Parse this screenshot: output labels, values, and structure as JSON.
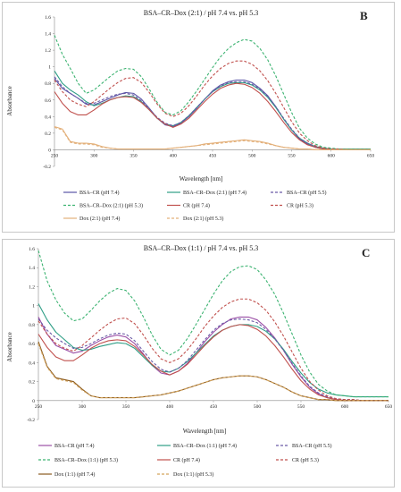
{
  "chart_data": [
    {
      "type": "line",
      "panel_letter": "B",
      "title": "BSA–CR–Dox (2:1) / pH 7.4 vs. pH 5.3",
      "xlabel": "Wavelength [nm]",
      "ylabel": "Absorbance",
      "xlim": [
        250,
        650
      ],
      "ylim": [
        -0.2,
        1.6
      ],
      "x_ticks": [
        250,
        300,
        350,
        400,
        450,
        500,
        550,
        600,
        650
      ],
      "y_ticks": [
        -0.2,
        0,
        0.2,
        0.4,
        0.6,
        0.8,
        1,
        1.2,
        1.4,
        1.6
      ],
      "y_tick_labels": [
        "-0.2",
        "0",
        "0.2",
        "0.4",
        "0.6",
        "0.8",
        "1",
        "1.2",
        "1.4",
        "1.6"
      ],
      "grid": false,
      "legend_position": "bottom",
      "x": [
        250,
        260,
        270,
        280,
        290,
        300,
        310,
        320,
        330,
        340,
        350,
        360,
        370,
        380,
        390,
        400,
        410,
        420,
        430,
        440,
        450,
        460,
        470,
        480,
        490,
        500,
        510,
        520,
        530,
        540,
        550,
        560,
        570,
        580,
        590,
        600,
        610,
        620,
        630,
        640,
        650
      ],
      "series": [
        {
          "name": "BSA–CR (pH 7.4)",
          "color": "#5a55a6",
          "dash": "solid",
          "values": [
            0.86,
            0.74,
            0.68,
            0.62,
            0.55,
            0.54,
            0.58,
            0.62,
            0.66,
            0.69,
            0.68,
            0.61,
            0.5,
            0.38,
            0.3,
            0.28,
            0.32,
            0.4,
            0.5,
            0.61,
            0.71,
            0.78,
            0.82,
            0.84,
            0.84,
            0.81,
            0.74,
            0.65,
            0.52,
            0.37,
            0.24,
            0.13,
            0.07,
            0.03,
            0.01,
            0.01,
            0.0,
            0.0,
            0.0,
            0.0,
            0.0
          ]
        },
        {
          "name": "BSA–CR–Dox (2:1) (pH 7.4)",
          "color": "#2e9e86",
          "dash": "solid",
          "values": [
            0.95,
            0.8,
            0.72,
            0.66,
            0.58,
            0.53,
            0.56,
            0.6,
            0.63,
            0.65,
            0.64,
            0.58,
            0.48,
            0.38,
            0.31,
            0.29,
            0.33,
            0.41,
            0.51,
            0.61,
            0.7,
            0.76,
            0.8,
            0.81,
            0.81,
            0.78,
            0.72,
            0.63,
            0.51,
            0.37,
            0.24,
            0.14,
            0.08,
            0.04,
            0.02,
            0.01,
            0.01,
            0.01,
            0.01,
            0.01,
            0.01
          ]
        },
        {
          "name": "BSA–CR (pH 5.5)",
          "color": "#6a5aa6",
          "dash": "dashed",
          "values": [
            0.88,
            0.76,
            0.68,
            0.62,
            0.56,
            0.56,
            0.6,
            0.64,
            0.67,
            0.68,
            0.66,
            0.59,
            0.49,
            0.39,
            0.32,
            0.29,
            0.33,
            0.41,
            0.51,
            0.61,
            0.7,
            0.77,
            0.81,
            0.82,
            0.82,
            0.79,
            0.73,
            0.64,
            0.52,
            0.38,
            0.25,
            0.14,
            0.08,
            0.04,
            0.02,
            0.01,
            0.01,
            0.0,
            0.0,
            0.0,
            0.0
          ]
        },
        {
          "name": "BSA–CR–Dox (2:1) (pH 5.3)",
          "color": "#3cb371",
          "dash": "dashed",
          "values": [
            1.38,
            1.15,
            0.98,
            0.8,
            0.68,
            0.72,
            0.8,
            0.88,
            0.95,
            0.98,
            0.97,
            0.88,
            0.73,
            0.57,
            0.45,
            0.42,
            0.47,
            0.58,
            0.71,
            0.85,
            0.99,
            1.12,
            1.22,
            1.29,
            1.33,
            1.31,
            1.22,
            1.08,
            0.89,
            0.67,
            0.45,
            0.26,
            0.14,
            0.07,
            0.03,
            0.02,
            0.01,
            0.01,
            0.01,
            0.01,
            0.01
          ]
        },
        {
          "name": "CR (pH 7.4)",
          "color": "#c0504d",
          "dash": "solid",
          "values": [
            0.7,
            0.56,
            0.46,
            0.42,
            0.42,
            0.48,
            0.55,
            0.6,
            0.63,
            0.64,
            0.63,
            0.57,
            0.48,
            0.38,
            0.31,
            0.27,
            0.31,
            0.38,
            0.48,
            0.58,
            0.67,
            0.74,
            0.78,
            0.8,
            0.79,
            0.75,
            0.68,
            0.58,
            0.46,
            0.33,
            0.21,
            0.12,
            0.06,
            0.03,
            0.01,
            0.0,
            0.0,
            0.0,
            0.0,
            0.0,
            0.0
          ]
        },
        {
          "name": "CR (pH 5.3)",
          "color": "#c0504d",
          "dash": "dashed",
          "values": [
            0.84,
            0.7,
            0.6,
            0.55,
            0.52,
            0.58,
            0.66,
            0.74,
            0.81,
            0.86,
            0.87,
            0.81,
            0.69,
            0.55,
            0.44,
            0.4,
            0.44,
            0.53,
            0.65,
            0.78,
            0.89,
            0.98,
            1.04,
            1.07,
            1.07,
            1.03,
            0.95,
            0.83,
            0.68,
            0.51,
            0.34,
            0.2,
            0.11,
            0.05,
            0.02,
            0.01,
            0.01,
            0.0,
            0.0,
            0.0,
            0.0
          ]
        },
        {
          "name": "Dox (2:1) (pH 7.4)",
          "color": "#e3b07a",
          "dash": "solid",
          "values": [
            0.28,
            0.25,
            0.1,
            0.08,
            0.08,
            0.07,
            0.04,
            0.02,
            0.01,
            0.01,
            0.01,
            0.01,
            0.01,
            0.01,
            0.01,
            0.02,
            0.03,
            0.04,
            0.05,
            0.07,
            0.08,
            0.09,
            0.1,
            0.11,
            0.12,
            0.11,
            0.1,
            0.08,
            0.05,
            0.03,
            0.02,
            0.01,
            0.01,
            0.0,
            0.0,
            0.0,
            0.0,
            0.0,
            0.0,
            0.0,
            0.0
          ]
        },
        {
          "name": "Dox (2:1) (pH 5.3)",
          "color": "#e3b07a",
          "dash": "dashed",
          "values": [
            0.27,
            0.24,
            0.09,
            0.07,
            0.07,
            0.06,
            0.03,
            0.02,
            0.01,
            0.01,
            0.01,
            0.01,
            0.01,
            0.01,
            0.01,
            0.02,
            0.03,
            0.04,
            0.05,
            0.06,
            0.07,
            0.08,
            0.09,
            0.1,
            0.11,
            0.1,
            0.09,
            0.07,
            0.05,
            0.03,
            0.02,
            0.01,
            0.01,
            0.0,
            0.0,
            0.0,
            0.0,
            0.0,
            0.0,
            0.0,
            0.0
          ]
        }
      ]
    },
    {
      "type": "line",
      "panel_letter": "C",
      "title": "BSA–CR–Dox (1:1) / pH 7.4 vs. pH 5.3",
      "xlabel": "Wavelength [nm]",
      "ylabel": "Absorbance",
      "xlim": [
        250,
        650
      ],
      "ylim": [
        -0.2,
        1.6
      ],
      "x_ticks": [
        250,
        300,
        350,
        400,
        450,
        500,
        550,
        600,
        650
      ],
      "y_ticks": [
        -0.2,
        0,
        0.2,
        0.4,
        0.6,
        0.8,
        1,
        1.2,
        1.4,
        1.6
      ],
      "y_tick_labels": [
        "-0.2",
        "0",
        "0.2",
        "0.4",
        "0.6",
        "0.8",
        "1",
        "1.2",
        "1.4",
        "1.6"
      ],
      "grid": false,
      "legend_position": "bottom",
      "x": [
        250,
        260,
        270,
        280,
        290,
        300,
        310,
        320,
        330,
        340,
        350,
        360,
        370,
        380,
        390,
        400,
        410,
        420,
        430,
        440,
        450,
        460,
        470,
        480,
        490,
        500,
        510,
        520,
        530,
        540,
        550,
        560,
        570,
        580,
        590,
        600,
        610,
        620,
        630,
        640,
        650
      ],
      "series": [
        {
          "name": "BSA–CR (pH 7.4)",
          "color": "#9b4fa6",
          "dash": "solid",
          "values": [
            0.88,
            0.7,
            0.58,
            0.54,
            0.5,
            0.52,
            0.58,
            0.63,
            0.67,
            0.69,
            0.67,
            0.6,
            0.49,
            0.37,
            0.29,
            0.27,
            0.31,
            0.39,
            0.5,
            0.62,
            0.72,
            0.8,
            0.86,
            0.88,
            0.88,
            0.85,
            0.77,
            0.66,
            0.53,
            0.38,
            0.25,
            0.14,
            0.07,
            0.03,
            0.01,
            0.0,
            0.0,
            0.0,
            0.0,
            0.0,
            0.0
          ]
        },
        {
          "name": "BSA–CR–Dox (1:1) (pH 7.4)",
          "color": "#2e9e86",
          "dash": "solid",
          "values": [
            1.02,
            0.85,
            0.72,
            0.64,
            0.56,
            0.53,
            0.54,
            0.57,
            0.59,
            0.61,
            0.6,
            0.55,
            0.46,
            0.37,
            0.31,
            0.3,
            0.34,
            0.41,
            0.5,
            0.59,
            0.68,
            0.74,
            0.78,
            0.8,
            0.8,
            0.78,
            0.73,
            0.65,
            0.54,
            0.41,
            0.29,
            0.19,
            0.12,
            0.08,
            0.06,
            0.05,
            0.04,
            0.04,
            0.04,
            0.04,
            0.04
          ]
        },
        {
          "name": "BSA–CR (pH 5.5)",
          "color": "#6a5aa6",
          "dash": "dashed",
          "values": [
            0.86,
            0.74,
            0.66,
            0.6,
            0.55,
            0.56,
            0.6,
            0.65,
            0.69,
            0.71,
            0.7,
            0.63,
            0.52,
            0.41,
            0.33,
            0.3,
            0.34,
            0.42,
            0.53,
            0.64,
            0.74,
            0.81,
            0.85,
            0.86,
            0.85,
            0.82,
            0.75,
            0.65,
            0.53,
            0.39,
            0.26,
            0.15,
            0.08,
            0.04,
            0.02,
            0.01,
            0.01,
            0.0,
            0.0,
            0.0,
            0.0
          ]
        },
        {
          "name": "BSA–CR–Dox (1:1) (pH 5.3)",
          "color": "#3cb371",
          "dash": "dashed",
          "values": [
            1.58,
            1.26,
            1.06,
            0.92,
            0.84,
            0.86,
            0.95,
            1.05,
            1.13,
            1.18,
            1.16,
            1.05,
            0.88,
            0.69,
            0.54,
            0.48,
            0.53,
            0.65,
            0.8,
            0.96,
            1.12,
            1.26,
            1.36,
            1.41,
            1.42,
            1.38,
            1.27,
            1.12,
            0.92,
            0.7,
            0.48,
            0.3,
            0.17,
            0.1,
            0.06,
            0.05,
            0.04,
            0.04,
            0.04,
            0.04,
            0.04
          ]
        },
        {
          "name": "CR (pH 7.4)",
          "color": "#c0504d",
          "dash": "solid",
          "values": [
            0.7,
            0.56,
            0.46,
            0.42,
            0.42,
            0.48,
            0.55,
            0.6,
            0.63,
            0.64,
            0.63,
            0.57,
            0.48,
            0.38,
            0.31,
            0.27,
            0.31,
            0.38,
            0.48,
            0.58,
            0.67,
            0.74,
            0.78,
            0.8,
            0.79,
            0.75,
            0.68,
            0.58,
            0.46,
            0.33,
            0.21,
            0.12,
            0.06,
            0.03,
            0.01,
            0.0,
            0.0,
            0.0,
            0.0,
            0.0,
            0.0
          ]
        },
        {
          "name": "CR (pH 5.3)",
          "color": "#c0504d",
          "dash": "dashed",
          "values": [
            0.84,
            0.7,
            0.6,
            0.55,
            0.52,
            0.58,
            0.66,
            0.74,
            0.81,
            0.86,
            0.87,
            0.81,
            0.69,
            0.55,
            0.44,
            0.4,
            0.44,
            0.53,
            0.65,
            0.78,
            0.89,
            0.98,
            1.04,
            1.07,
            1.07,
            1.03,
            0.95,
            0.83,
            0.68,
            0.51,
            0.34,
            0.2,
            0.11,
            0.05,
            0.02,
            0.01,
            0.01,
            0.0,
            0.0,
            0.0,
            0.0
          ]
        },
        {
          "name": "Dox (1:1) (pH 7.4)",
          "color": "#8a5a1e",
          "dash": "solid",
          "values": [
            0.62,
            0.36,
            0.24,
            0.22,
            0.2,
            0.12,
            0.05,
            0.03,
            0.03,
            0.03,
            0.03,
            0.03,
            0.04,
            0.05,
            0.06,
            0.08,
            0.1,
            0.13,
            0.16,
            0.19,
            0.22,
            0.24,
            0.25,
            0.26,
            0.26,
            0.25,
            0.22,
            0.18,
            0.14,
            0.09,
            0.05,
            0.03,
            0.01,
            0.01,
            0.0,
            0.0,
            0.0,
            0.0,
            0.0,
            0.0,
            0.0
          ]
        },
        {
          "name": "Dox (1:1) (pH 5.3)",
          "color": "#d4a35a",
          "dash": "dashed",
          "values": [
            0.6,
            0.35,
            0.23,
            0.21,
            0.19,
            0.11,
            0.05,
            0.03,
            0.03,
            0.03,
            0.03,
            0.03,
            0.04,
            0.05,
            0.06,
            0.08,
            0.1,
            0.13,
            0.16,
            0.19,
            0.22,
            0.24,
            0.25,
            0.26,
            0.26,
            0.25,
            0.22,
            0.18,
            0.14,
            0.09,
            0.05,
            0.03,
            0.01,
            0.01,
            0.0,
            0.0,
            0.0,
            0.0,
            0.0,
            0.0,
            0.0
          ]
        }
      ]
    }
  ]
}
